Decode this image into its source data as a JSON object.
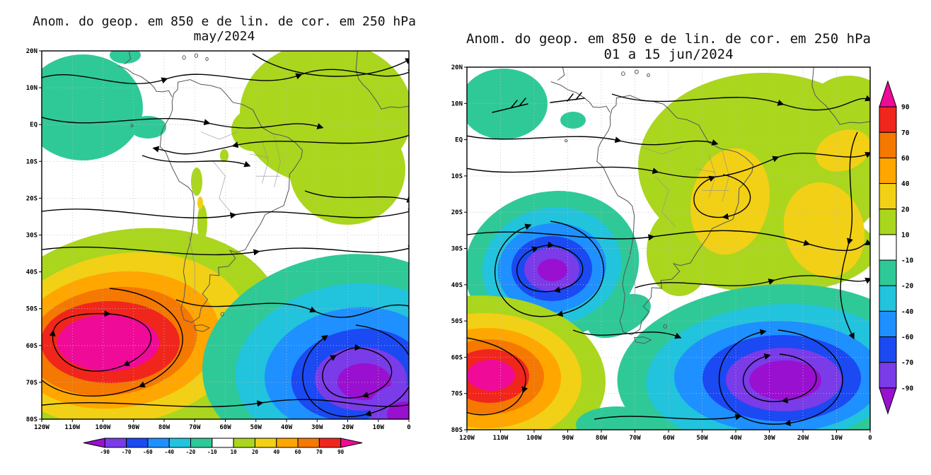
{
  "page": {
    "background": "#ffffff",
    "text_color": "#000000"
  },
  "charts": [
    {
      "id": "left",
      "title": "Anom. do geop. em 850 e de lin. de cor. em 250 hPa",
      "subtitle": "may/2024",
      "lat_labels": [
        "20N",
        "10N",
        "EQ",
        "10S",
        "20S",
        "30S",
        "40S",
        "50S",
        "60S",
        "70S",
        "80S"
      ],
      "lon_labels": [
        "120W",
        "110W",
        "100W",
        "90W",
        "80W",
        "70W",
        "60W",
        "50W",
        "40W",
        "30W",
        "20W",
        "10W",
        "0"
      ],
      "colorbar_position": "horizontal_below"
    },
    {
      "id": "right",
      "title": "Anom. do geop. em 850 e de lin. de cor. em 250 hPa",
      "subtitle": "01 a 15 jun/2024",
      "lat_labels": [
        "20N",
        "10N",
        "EQ",
        "10S",
        "20S",
        "30S",
        "40S",
        "50S",
        "60S",
        "70S",
        "80S"
      ],
      "lon_labels": [
        "120W",
        "110W",
        "100W",
        "90W",
        "80W",
        "70W",
        "60W",
        "50W",
        "40W",
        "30W",
        "20W",
        "10W",
        "0"
      ],
      "colorbar_position": "vertical_right"
    }
  ],
  "colorbar": {
    "levels": [
      "-90",
      "-70",
      "-60",
      "-40",
      "-20",
      "-10",
      "10",
      "20",
      "40",
      "60",
      "70",
      "90"
    ],
    "color_order": [
      "violet",
      "purple",
      "blue",
      "lblue",
      "cyan",
      "teal",
      "white",
      "ygreen",
      "yellow",
      "orange",
      "dorange",
      "red",
      "magenta"
    ]
  },
  "palette": {
    "violet": "#9a10d0",
    "purple": "#7a3be8",
    "blue": "#1b49f2",
    "lblue": "#1e90ff",
    "cyan": "#22c3dc",
    "teal": "#2fc998",
    "white": "#ffffff",
    "ygreen": "#aad61e",
    "yellow": "#f2d015",
    "orange": "#ffa600",
    "dorange": "#f57800",
    "red": "#f0261c",
    "magenta": "#f00a98"
  },
  "map_colors": {
    "streamline": "#000000",
    "coastline": "#555555",
    "grid": "#bdbdbd",
    "frame": "#000000"
  },
  "chart_data": [
    {
      "type": "heatmap",
      "variant": "filled_contour_map_with_streamlines",
      "title": "Anom. do geop. em 850 e de lin. de cor. em 250 hPa",
      "period": "may/2024",
      "projection": "latlon",
      "lon_range": [
        "120W",
        "0"
      ],
      "lat_range": [
        "20N",
        "80S"
      ],
      "lon_ticks": [
        "120W",
        "110W",
        "100W",
        "90W",
        "80W",
        "70W",
        "60W",
        "50W",
        "40W",
        "30W",
        "20W",
        "10W",
        "0"
      ],
      "lat_ticks": [
        "20N",
        "10N",
        "EQ",
        "10S",
        "20S",
        "30S",
        "40S",
        "50S",
        "60S",
        "70S",
        "80S"
      ],
      "contour_levels": [
        -90,
        -70,
        -60,
        -40,
        -20,
        -10,
        10,
        20,
        40,
        60,
        70,
        90
      ],
      "legend_position": "horizontal_below",
      "grid": true,
      "overlay": "250 hPa anomalous streamlines (black curves with arrowheads)",
      "features": [
        {
          "feature": "strong positive geopotential anomaly maximum",
          "approx_center": "55S 95W",
          "peak_value": "> 90",
          "color": "magenta core with red/orange/yellow/green rings"
        },
        {
          "feature": "negative geopotential anomaly minimum",
          "approx_center": "63S 25W",
          "peak_value": "< -90",
          "color": "purple core with blue/cyan/teal rings"
        },
        {
          "feature": "secondary negative core",
          "approx_center": "75S 3W (bottom-right corner)",
          "peak_value": "-70 to -90"
        },
        {
          "feature": "weak positive anomaly (10 to 20)",
          "region": "tropical Atlantic and northeastern South America"
        },
        {
          "feature": "weak negative anomaly (-10 to -20)",
          "region": "eastern tropical Pacific near 105W between 15N and 5S"
        },
        {
          "feature": "anticyclonic closed streamline circulation",
          "approx_center": "55S 95W"
        },
        {
          "feature": "cyclonic closed streamline circulation",
          "approx_center": "62S 25W"
        }
      ]
    },
    {
      "type": "heatmap",
      "variant": "filled_contour_map_with_streamlines",
      "title": "Anom. do geop. em 850 e de lin. de cor. em 250 hPa",
      "period": "01 a 15 jun/2024",
      "projection": "latlon",
      "lon_range": [
        "120W",
        "0"
      ],
      "lat_range": [
        "20N",
        "80S"
      ],
      "lon_ticks": [
        "120W",
        "110W",
        "100W",
        "90W",
        "80W",
        "70W",
        "60W",
        "50W",
        "40W",
        "30W",
        "20W",
        "10W",
        "0"
      ],
      "lat_ticks": [
        "20N",
        "10N",
        "EQ",
        "10S",
        "20S",
        "30S",
        "40S",
        "50S",
        "60S",
        "70S",
        "80S"
      ],
      "contour_levels": [
        -90,
        -70,
        -60,
        -40,
        -20,
        -10,
        10,
        20,
        40,
        60,
        70,
        90
      ],
      "legend_position": "vertical_right",
      "grid": true,
      "overlay": "250 hPa anomalous streamlines (black curves with arrowheads, wind-barb symbols near 10N 105W)",
      "features": [
        {
          "feature": "negative geopotential anomaly minimum",
          "approx_center": "36S 95W",
          "peak_value": "< -90",
          "color": "violet core with purple/blue/cyan/teal rings"
        },
        {
          "feature": "strong positive anomaly maximum",
          "approx_center": "65S 112W (southwest corner)",
          "peak_value": "> 90",
          "color": "magenta core with red/orange/yellow/green rings"
        },
        {
          "feature": "large negative anomaly minimum",
          "approx_center": "64S 28W",
          "peak_value": "< -90",
          "color": "violet/purple core with blue/cyan/teal rings"
        },
        {
          "feature": "moderate positive anomaly (20 to 40)",
          "region": "eastern Brazil and subtropical South Atlantic"
        },
        {
          "feature": "weak positive anomaly (10 to 20)",
          "region": "most of tropical South America and adjacent Atlantic down to about 35S"
        },
        {
          "feature": "weak negative anomaly (-10 to -20)",
          "region": "eastern tropical Pacific near 108W 8N"
        },
        {
          "feature": "cyclonic closed streamline circulation",
          "approx_center": "35S 95W"
        },
        {
          "feature": "cyclonic closed streamline circulation",
          "approx_center": "63S 28W"
        },
        {
          "feature": "cyclonic streamline curl",
          "approx_center": "15S 42W"
        }
      ]
    }
  ]
}
